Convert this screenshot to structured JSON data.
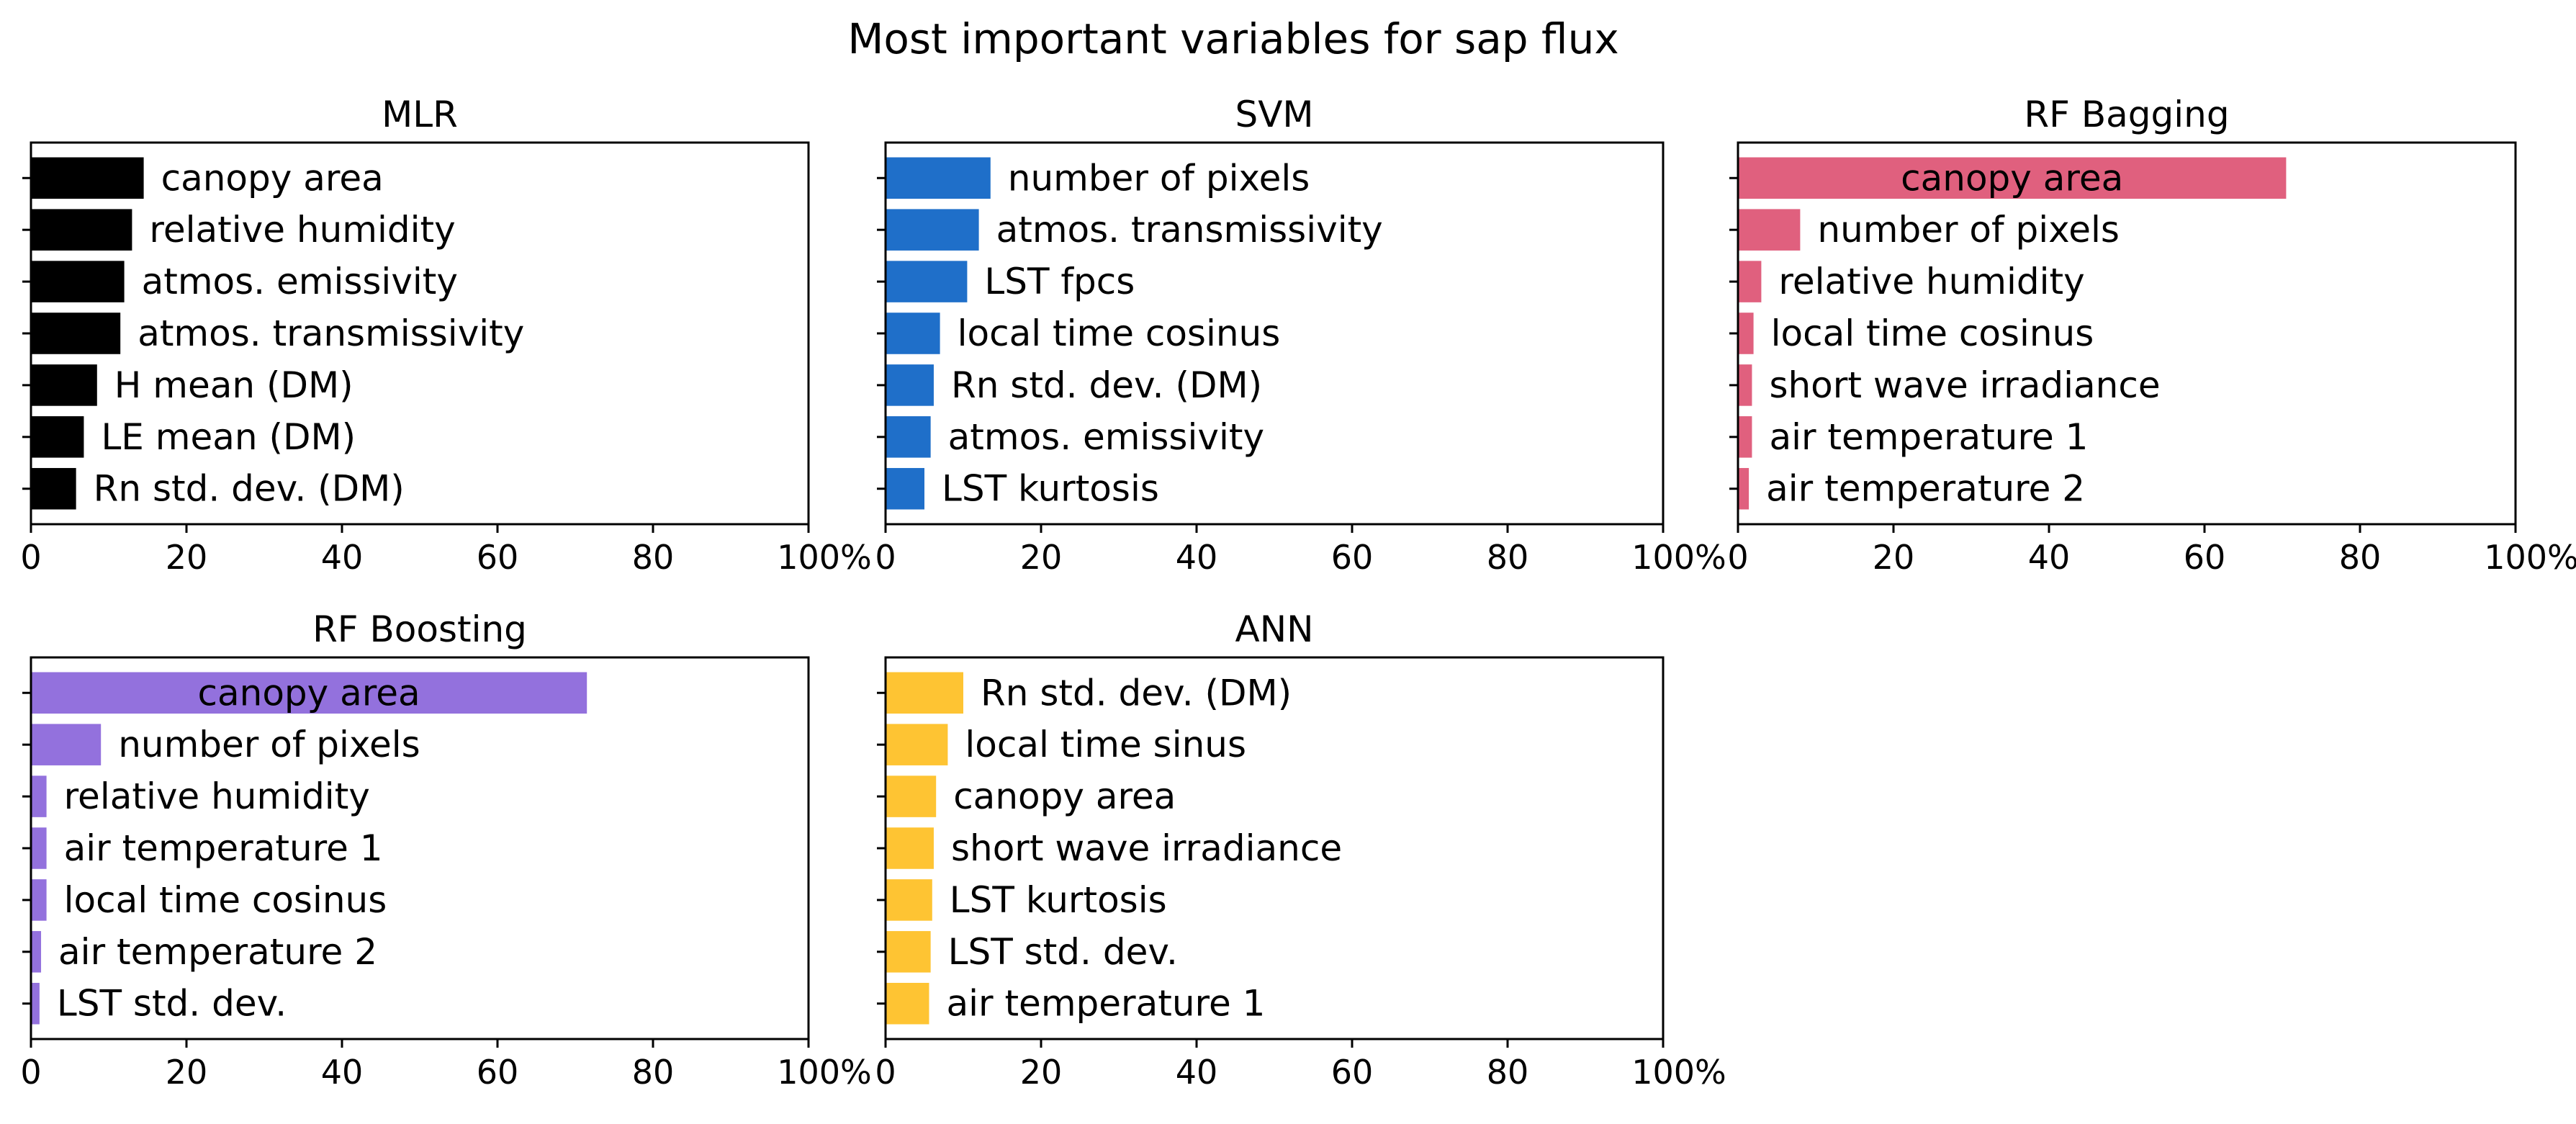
{
  "chart_data": {
    "title": "Most important variables for sap flux",
    "panels": [
      {
        "type": "bar",
        "orientation": "horizontal",
        "title": "MLR",
        "color": "#000000",
        "xlim": [
          0,
          100
        ],
        "xticks": [
          "0",
          "20",
          "40",
          "60",
          "80",
          "100%"
        ],
        "categories": [
          "canopy area",
          "relative humidity",
          "atmos. emissivity",
          "atmos. transmissivity",
          "H mean (DM)",
          "LE mean (DM)",
          "Rn std. dev. (DM)"
        ],
        "values": [
          14.5,
          13.0,
          12.0,
          11.5,
          8.5,
          6.8,
          5.8
        ]
      },
      {
        "type": "bar",
        "orientation": "horizontal",
        "title": "SVM",
        "color": "#1f6fc9",
        "xlim": [
          0,
          100
        ],
        "xticks": [
          "0",
          "20",
          "40",
          "60",
          "80",
          "100%"
        ],
        "categories": [
          "number of pixels",
          "atmos. transmissivity",
          "LST fpcs",
          "local time cosinus",
          "Rn std. dev. (DM)",
          "atmos. emissivity",
          "LST kurtosis"
        ],
        "values": [
          13.5,
          12.0,
          10.5,
          7.0,
          6.2,
          5.8,
          5.0
        ]
      },
      {
        "type": "bar",
        "orientation": "horizontal",
        "title": "RF Bagging",
        "color": "#e0607e",
        "xlim": [
          0,
          100
        ],
        "xticks": [
          "0",
          "20",
          "40",
          "60",
          "80",
          "100%"
        ],
        "categories": [
          "canopy area",
          "number of pixels",
          "relative humidity",
          "local time cosinus",
          "short wave irradiance",
          "air temperature 1",
          "air temperature 2"
        ],
        "values": [
          70.5,
          8.0,
          3.0,
          2.0,
          1.8,
          1.8,
          1.4
        ]
      },
      {
        "type": "bar",
        "orientation": "horizontal",
        "title": "RF Boosting",
        "color": "#9371dd",
        "xlim": [
          0,
          100
        ],
        "xticks": [
          "0",
          "20",
          "40",
          "60",
          "80",
          "100%"
        ],
        "categories": [
          "canopy area",
          "number of pixels",
          "relative humidity",
          "air temperature 1",
          "local time cosinus",
          "air temperature 2",
          "LST std. dev."
        ],
        "values": [
          71.5,
          9.0,
          2.0,
          2.0,
          2.0,
          1.3,
          1.1
        ]
      },
      {
        "type": "bar",
        "orientation": "horizontal",
        "title": "ANN",
        "color": "#fec433",
        "xlim": [
          0,
          100
        ],
        "xticks": [
          "0",
          "20",
          "40",
          "60",
          "80",
          "100%"
        ],
        "categories": [
          "Rn std. dev. (DM)",
          "local time sinus",
          "canopy area",
          "short wave irradiance",
          "LST kurtosis",
          "LST std. dev.",
          "air temperature 1"
        ],
        "values": [
          10.0,
          8.0,
          6.5,
          6.2,
          6.0,
          5.8,
          5.6
        ]
      }
    ]
  }
}
